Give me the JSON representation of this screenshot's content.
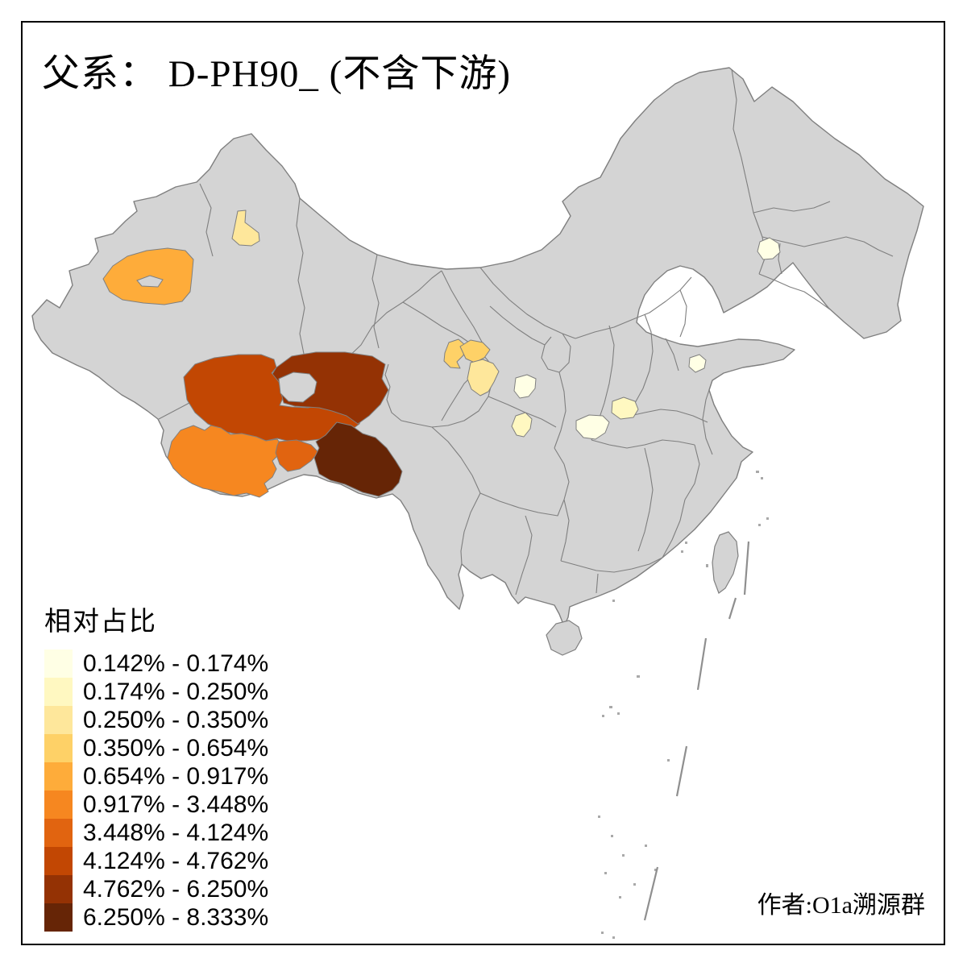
{
  "title": "父系： D-PH90_ (不含下游)",
  "legend": {
    "title": "相对占比",
    "classes": [
      {
        "range": "0.142% - 0.174%",
        "color": "#FFFFE5"
      },
      {
        "range": "0.174% - 0.250%",
        "color": "#FFF8C1"
      },
      {
        "range": "0.250% - 0.350%",
        "color": "#FEE79B"
      },
      {
        "range": "0.350% - 0.654%",
        "color": "#FED167"
      },
      {
        "range": "0.654% - 0.917%",
        "color": "#FEAC3A"
      },
      {
        "range": "0.917% - 3.448%",
        "color": "#F68720"
      },
      {
        "range": "3.448% - 4.124%",
        "color": "#E16410"
      },
      {
        "range": "4.124% - 4.762%",
        "color": "#C24703"
      },
      {
        "range": "4.762% - 6.250%",
        "color": "#943204"
      },
      {
        "range": "6.250% - 8.333%",
        "color": "#662506"
      }
    ]
  },
  "attribution": "作者:O1a溯源群",
  "map": {
    "base_fill": "#D4D4D4",
    "border_color": "#7F7F7F",
    "background": "#FFFFFF",
    "regions": [
      {
        "id": "aksu-xinjiang",
        "class_index": 4
      },
      {
        "id": "north-xinjiang",
        "class_index": 2
      },
      {
        "id": "nagqu",
        "class_index": 7
      },
      {
        "id": "yushu-qinghai",
        "class_index": 8
      },
      {
        "id": "ngari-shigatse",
        "class_index": 5
      },
      {
        "id": "lhasa",
        "class_index": 6
      },
      {
        "id": "shannan-nyingchi",
        "class_index": 9
      },
      {
        "id": "linxia-gansu",
        "class_index": 3
      },
      {
        "id": "gannan-gansu",
        "class_index": 3
      },
      {
        "id": "south-gansu",
        "class_index": 2
      },
      {
        "id": "west-shaanxi",
        "class_index": 0
      },
      {
        "id": "hanzhong-shaanxi",
        "class_index": 1
      },
      {
        "id": "nanyang-henan",
        "class_index": 1
      },
      {
        "id": "xiangyang-hubei",
        "class_index": 0
      },
      {
        "id": "central-shandong",
        "class_index": 0
      },
      {
        "id": "central-jilin",
        "class_index": 0
      }
    ]
  }
}
